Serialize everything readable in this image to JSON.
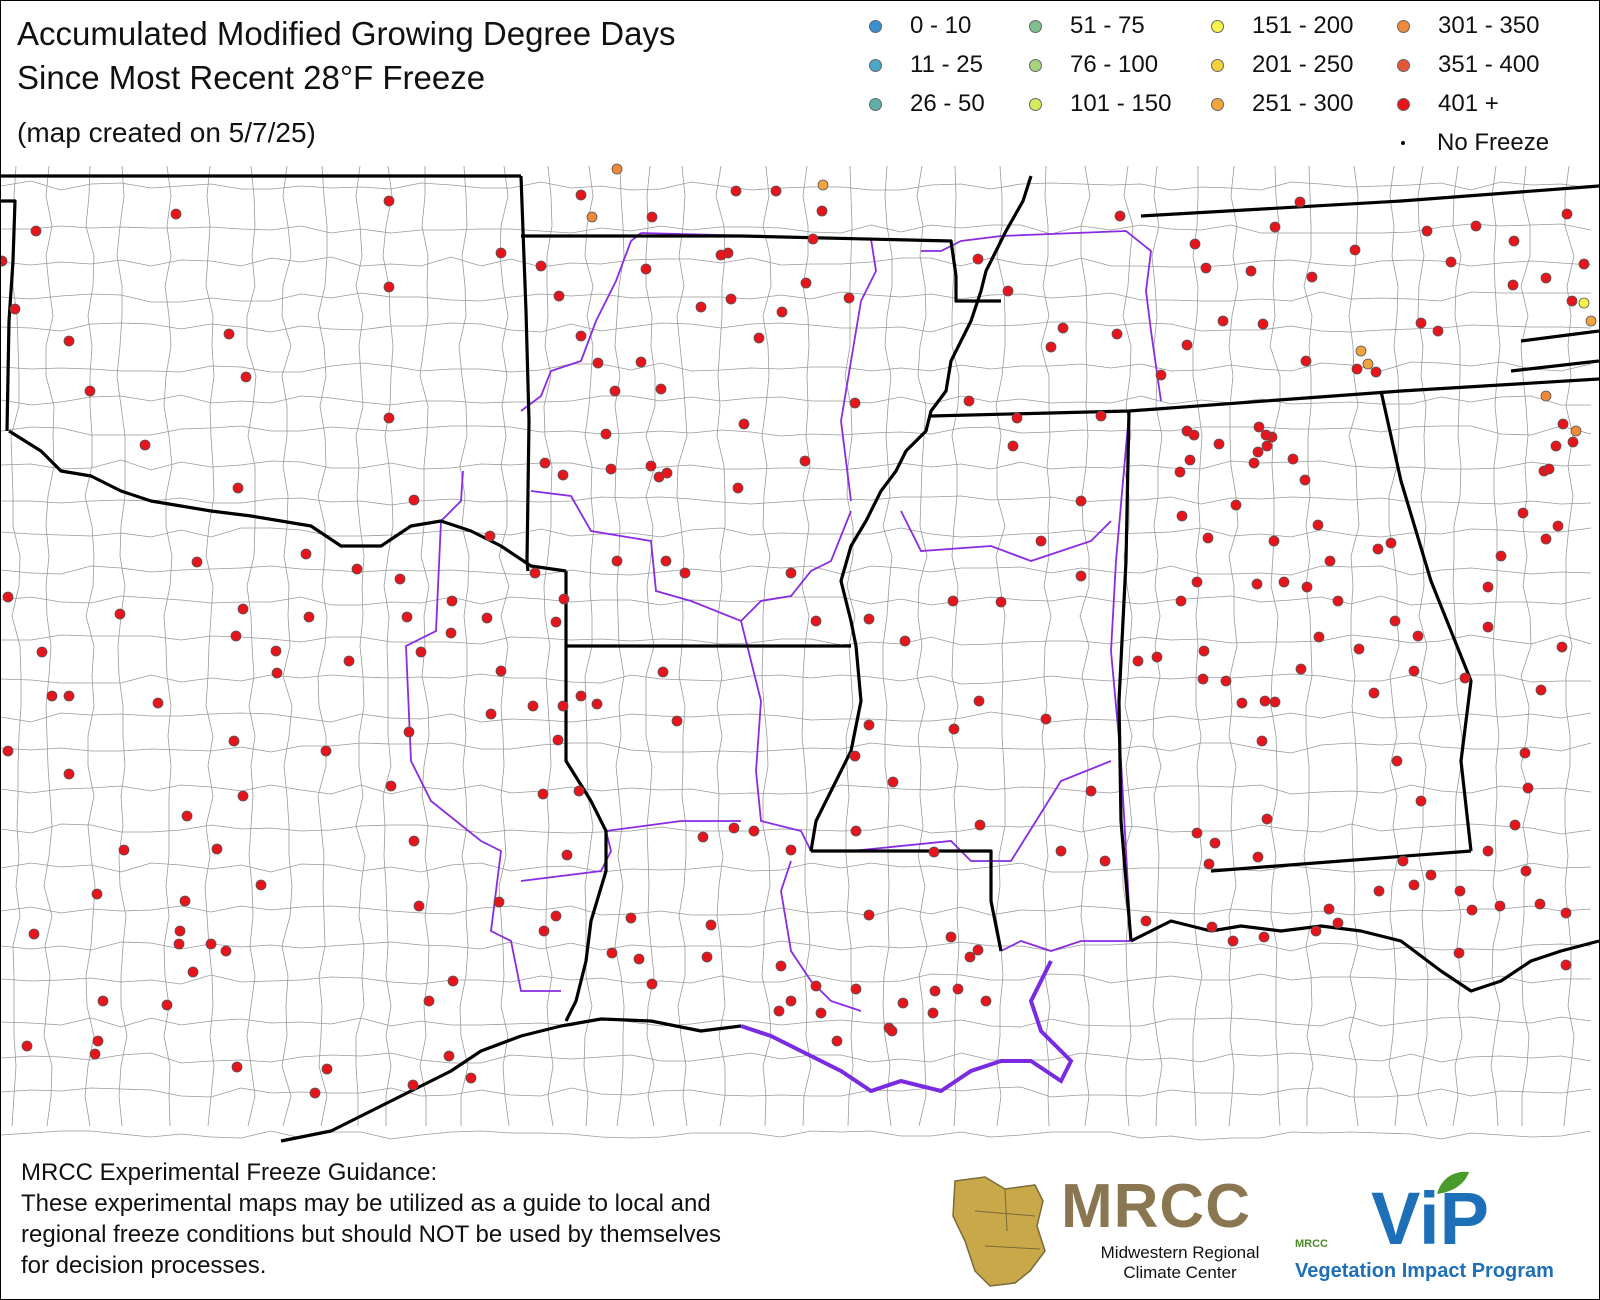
{
  "title": {
    "line1": "Accumulated Modified Growing Degree Days",
    "line2": "Since Most Recent 28°F Freeze",
    "created": "(map created on 5/7/25)"
  },
  "legend": [
    {
      "label": "0 - 10",
      "color": "#3a8fd0"
    },
    {
      "label": "11 - 25",
      "color": "#4aa8c8"
    },
    {
      "label": "26 - 50",
      "color": "#5fb0a8"
    },
    {
      "label": "51 - 75",
      "color": "#7fbf8f"
    },
    {
      "label": "76 - 100",
      "color": "#a6d47c"
    },
    {
      "label": "101 - 150",
      "color": "#d6ec5e"
    },
    {
      "label": "151 - 200",
      "color": "#fbf44a"
    },
    {
      "label": "201 - 250",
      "color": "#f7d03c"
    },
    {
      "label": "251 - 300",
      "color": "#f3a43c"
    },
    {
      "label": "301 - 350",
      "color": "#ee8a3a"
    },
    {
      "label": "351 - 400",
      "color": "#e8563a"
    },
    {
      "label": "401 +",
      "color": "#e8141c"
    },
    {
      "label": "No Freeze",
      "color": "#000000"
    }
  ],
  "disclaimer": [
    "MRCC Experimental Freeze Guidance:",
    "These experimental maps may be utilized as a guide to local and",
    "regional freeze conditions but should NOT be used by themselves",
    "for decision processes."
  ],
  "mrcc_logo": {
    "name": "MRCC",
    "sub1": "Midwestern Regional",
    "sub2": "Climate Center"
  },
  "vip_logo": {
    "name": "ViP",
    "sub": "Vegetation Impact Program",
    "small": "MRCC"
  },
  "colors": {
    "state_line": "#000000",
    "county_line": "#8a8a8a",
    "climate_division": "#8a2be2",
    "station_401_plus": "#e8141c"
  }
}
